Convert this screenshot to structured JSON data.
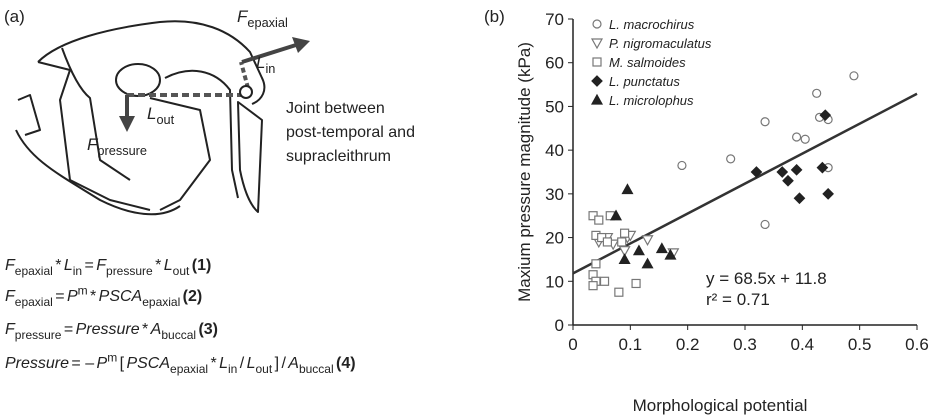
{
  "panel_a": {
    "label": "(a)",
    "labels": [
      [
        "F",
        "epaxial"
      ],
      [
        "L",
        "in"
      ],
      [
        "L",
        "out"
      ],
      [
        "F",
        "pressure"
      ]
    ],
    "joint": [
      "Joint between",
      "post-temporal and",
      "supracleithrum"
    ],
    "equations": [
      [
        "F",
        "epaxial",
        "*",
        "L",
        "in",
        "=",
        "F",
        "pressure",
        "*",
        "L",
        "out",
        "(1)"
      ],
      [
        "F",
        "epaxial",
        "=",
        "P",
        "m",
        "*",
        "PSCA",
        "epaxial",
        "(2)"
      ],
      [
        "F",
        "pressure",
        "=",
        "Pressure",
        "*",
        "A",
        "buccal",
        "(3)"
      ],
      [
        "Pressure",
        "= –",
        "P",
        "m",
        "[",
        "PSCA",
        "epaxial",
        "*",
        "L",
        "in",
        "/",
        "L",
        "out",
        "]",
        "/",
        "A",
        "buccal",
        "(4)"
      ]
    ]
  },
  "chart_data": {
    "type": "scatter",
    "panel_label": "(b)",
    "x_label": "Morphological potential",
    "y_label": "Maxium pressure magnitude (kPa)",
    "xlim": [
      0,
      0.6
    ],
    "ylim": [
      0,
      70
    ],
    "xticks": [
      0,
      0.1,
      0.2,
      0.3,
      0.4,
      0.5,
      0.6
    ],
    "yticks": [
      0,
      10,
      20,
      30,
      40,
      50,
      60,
      70
    ],
    "grid": false,
    "legend": "top-left",
    "series": [
      {
        "name": "L. macrochirus",
        "marker": "circle",
        "filled": false,
        "color": "#777777",
        "x": [
          0.19,
          0.275,
          0.335,
          0.335,
          0.39,
          0.405,
          0.425,
          0.43,
          0.445,
          0.445,
          0.49
        ],
        "values": [
          36.5,
          38,
          46.5,
          23,
          43,
          42.5,
          53,
          47.5,
          47,
          36,
          57
        ]
      },
      {
        "name": "P. nigromaculatus",
        "marker": "triangle-down",
        "filled": false,
        "color": "#777777",
        "x": [
          0.045,
          0.06,
          0.07,
          0.095,
          0.1,
          0.13,
          0.175,
          0.09
        ],
        "values": [
          19,
          20,
          18.5,
          20,
          20.5,
          19.5,
          16.5,
          17
        ]
      },
      {
        "name": "M. salmoides",
        "marker": "square",
        "filled": false,
        "color": "#777777",
        "x": [
          0.035,
          0.045,
          0.065,
          0.04,
          0.05,
          0.06,
          0.04,
          0.035,
          0.04,
          0.055,
          0.035,
          0.08,
          0.11,
          0.09,
          0.085
        ],
        "values": [
          25,
          24,
          25,
          20.5,
          20,
          19,
          14,
          11.5,
          10,
          10,
          9,
          7.5,
          9.5,
          21,
          19
        ]
      },
      {
        "name": "L. punctatus",
        "marker": "diamond",
        "filled": true,
        "color": "#222222",
        "x": [
          0.32,
          0.365,
          0.375,
          0.39,
          0.395,
          0.435,
          0.44,
          0.445
        ],
        "values": [
          35,
          35,
          33,
          35.5,
          29,
          36,
          48,
          30
        ]
      },
      {
        "name": "L. microlophus",
        "marker": "triangle",
        "filled": true,
        "color": "#222222",
        "x": [
          0.075,
          0.095,
          0.09,
          0.115,
          0.13,
          0.155,
          0.17
        ],
        "values": [
          25,
          31,
          15,
          17,
          14,
          17.5,
          16
        ]
      }
    ],
    "fit": {
      "slope": 68.5,
      "intercept": 11.8,
      "color": "#333333",
      "label": "y = 68.5x + 11.8",
      "r2_label": "r² = 0.71"
    }
  }
}
